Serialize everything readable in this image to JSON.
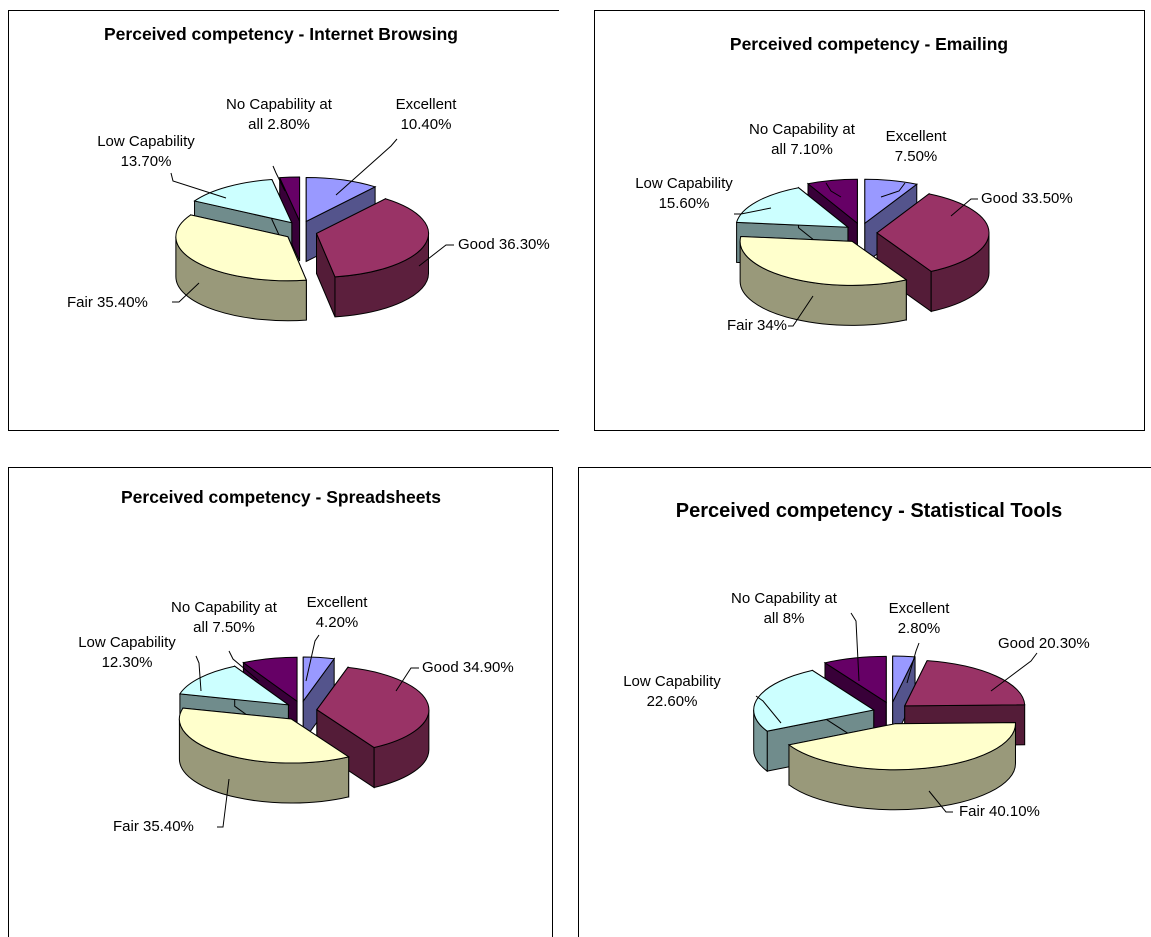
{
  "chart_data": [
    {
      "type": "pie",
      "title": "Perceived competency - Internet Browsing",
      "series": [
        {
          "values": [
            {
              "label": "Excellent",
              "value": 10.4,
              "text": "10.40%"
            },
            {
              "label": "Good",
              "value": 36.3,
              "text": "36.30%"
            },
            {
              "label": "Fair",
              "value": 35.4,
              "text": "35.40%"
            },
            {
              "label": "Low Capability",
              "value": 13.7,
              "text": "13.70%"
            },
            {
              "label": "No Capability at all",
              "value": 2.8,
              "text": "2.80%"
            }
          ]
        }
      ]
    },
    {
      "type": "pie",
      "title": "Perceived competency - Emailing",
      "series": [
        {
          "values": [
            {
              "label": "Excellent",
              "value": 7.5,
              "text": "7.50%"
            },
            {
              "label": "Good",
              "value": 33.5,
              "text": "33.50%"
            },
            {
              "label": "Fair",
              "value": 34,
              "text": "34%"
            },
            {
              "label": "Low Capability",
              "value": 15.6,
              "text": "15.60%"
            },
            {
              "label": "No Capability at all",
              "value": 7.1,
              "text": "7.10%"
            }
          ]
        }
      ]
    },
    {
      "type": "pie",
      "title": "Perceived competency - Spreadsheets",
      "series": [
        {
          "values": [
            {
              "label": "Excellent",
              "value": 4.2,
              "text": "4.20%"
            },
            {
              "label": "Good",
              "value": 34.9,
              "text": "34.90%"
            },
            {
              "label": "Fair",
              "value": 35.4,
              "text": "35.40%"
            },
            {
              "label": "Low Capability",
              "value": 12.3,
              "text": "12.30%"
            },
            {
              "label": "No Capability at all",
              "value": 7.5,
              "text": "7.50%"
            }
          ]
        }
      ]
    },
    {
      "type": "pie",
      "title": "Perceived competency - Statistical Tools",
      "series": [
        {
          "values": [
            {
              "label": "Excellent",
              "value": 2.8,
              "text": "2.80%"
            },
            {
              "label": "Good",
              "value": 20.3,
              "text": "20.30%"
            },
            {
              "label": "Fair",
              "value": 40.1,
              "text": "40.10%"
            },
            {
              "label": "Low Capability",
              "value": 22.6,
              "text": "22.60%"
            },
            {
              "label": "No Capability at all",
              "value": 8,
              "text": "8%"
            }
          ]
        }
      ]
    }
  ],
  "colors": {
    "Excellent": "#9999FF",
    "Good": "#993366",
    "Fair": "#FFFFCC",
    "Low Capability": "#CCFFFF",
    "No Capability at all": "#660066"
  }
}
